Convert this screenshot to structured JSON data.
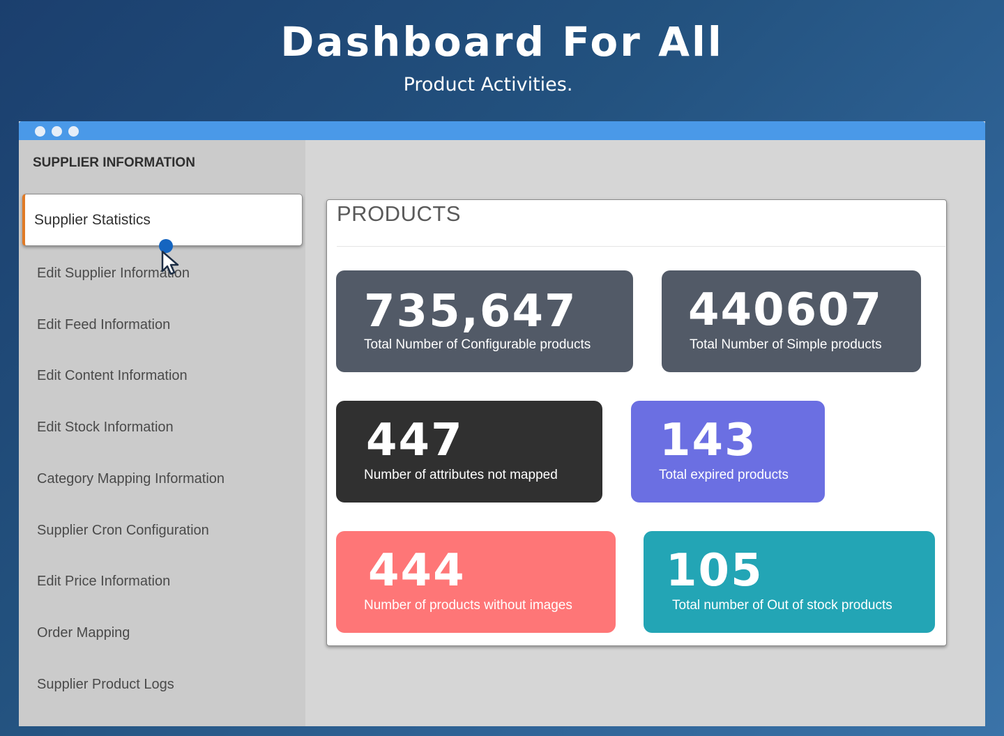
{
  "hero": {
    "title": "Dashboard For All",
    "subtitle": "Product Activities."
  },
  "sidebar": {
    "heading": "SUPPLIER INFORMATION",
    "active_item": "Supplier Statistics",
    "items": [
      "Edit Supplier Information",
      "Edit Feed Information",
      "Edit Content Information",
      "Edit Stock Information",
      "Category Mapping Information",
      "Supplier Cron Configuration",
      "Edit Price Information",
      "Order Mapping",
      "Supplier Product Logs"
    ]
  },
  "panel": {
    "title": "PRODUCTS",
    "cards": [
      {
        "value": "735,647",
        "label": "Total Number of Configurable products",
        "color": "#525a67"
      },
      {
        "value": "440607",
        "label": "Total Number of Simple products",
        "color": "#525a67"
      },
      {
        "value": "447",
        "label": "Number of attributes not mapped",
        "color": "#303030"
      },
      {
        "value": "143",
        "label": "Total expired products",
        "color": "#6b6fe2"
      },
      {
        "value": "444",
        "label": "Number of products without images",
        "color": "#fe7677"
      },
      {
        "value": "105",
        "label": "Total number of Out of stock products",
        "color": "#23a5b5"
      }
    ]
  },
  "icons": [
    "window-dot-icon",
    "pointer-cursor-icon"
  ],
  "colors": {
    "titlebar": "#4a99e8",
    "active_accent": "#e07a26",
    "cursor_dot": "#1565c0"
  }
}
